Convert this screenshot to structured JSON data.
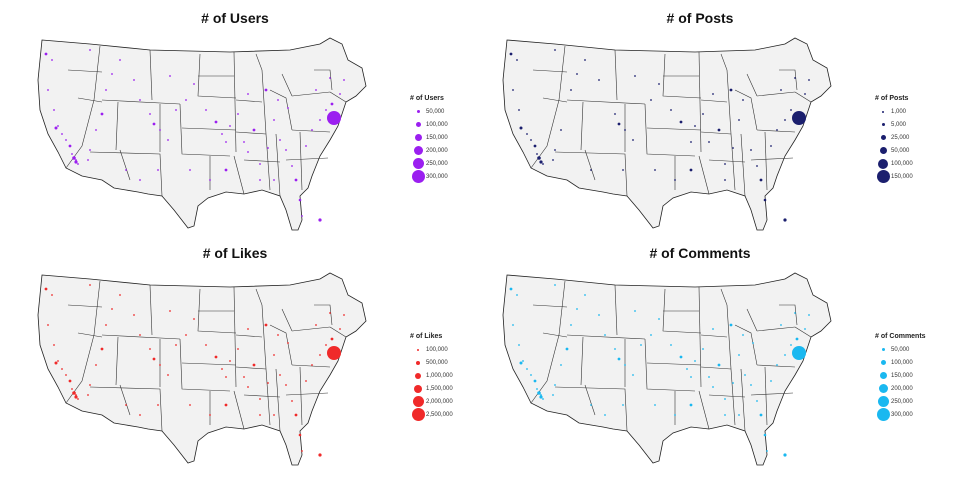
{
  "panels": [
    {
      "id": "users",
      "title": "# of Users",
      "color": "#9b1ff0",
      "legend": {
        "title": "# of Users",
        "items": [
          "50,000",
          "100,000",
          "150,000",
          "200,000",
          "250,000",
          "300,000"
        ]
      }
    },
    {
      "id": "posts",
      "title": "# of Posts",
      "color": "#1b1f6e",
      "legend": {
        "title": "# of Posts",
        "items": [
          "1,000",
          "5,000",
          "25,000",
          "50,000",
          "100,000",
          "150,000"
        ]
      }
    },
    {
      "id": "likes",
      "title": "# of Likes",
      "color": "#f02a2a",
      "legend": {
        "title": "# of Likes",
        "items": [
          "100,000",
          "500,000",
          "1,000,000",
          "1,500,000",
          "2,000,000",
          "2,500,000"
        ]
      }
    },
    {
      "id": "comments",
      "title": "# of Comments",
      "color": "#1ab8f0",
      "legend": {
        "title": "# of Comments",
        "items": [
          "50,000",
          "100,000",
          "150,000",
          "200,000",
          "250,000",
          "300,000"
        ]
      }
    }
  ]
}
